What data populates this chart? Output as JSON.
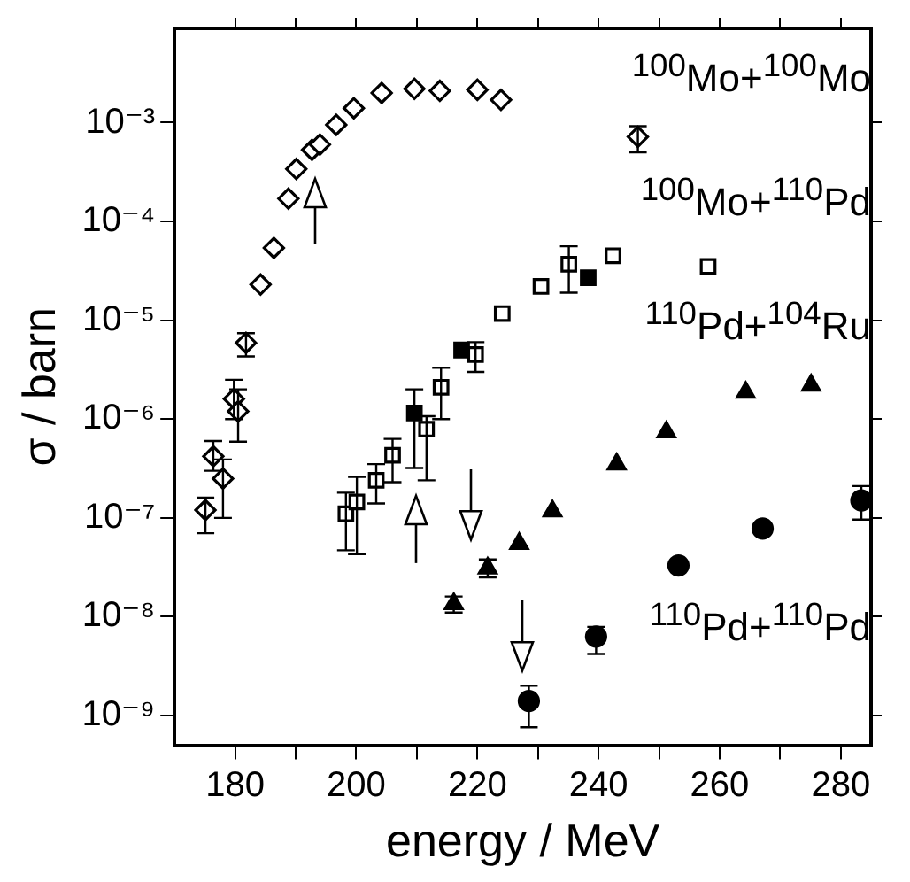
{
  "chart_data": {
    "type": "scatter",
    "xlabel": "energy / MeV",
    "ylabel": "σ / barn",
    "log": "y",
    "grid": false,
    "legend": "right",
    "xlim": [
      170,
      285
    ],
    "xticks": [
      {
        "value": 180,
        "label": "180"
      },
      {
        "value": 190,
        "label": null
      },
      {
        "value": 200,
        "label": "200"
      },
      {
        "value": 210,
        "label": null
      },
      {
        "value": 220,
        "label": "220"
      },
      {
        "value": 230,
        "label": null
      },
      {
        "value": 240,
        "label": "240"
      },
      {
        "value": 250,
        "label": null
      },
      {
        "value": 260,
        "label": "260"
      },
      {
        "value": 270,
        "label": null
      },
      {
        "value": 280,
        "label": "280"
      }
    ],
    "ylim": [
      5e-10,
      0.009
    ],
    "yticks": [
      {
        "value": 1e-09,
        "label": "10⁻⁹"
      },
      {
        "value": 1e-08,
        "label": "10⁻⁸"
      },
      {
        "value": 1e-07,
        "label": "10⁻⁷"
      },
      {
        "value": 1e-06,
        "label": "10⁻⁶"
      },
      {
        "value": 1e-05,
        "label": "10⁻⁵"
      },
      {
        "value": 0.0001,
        "label": "10⁻⁴"
      },
      {
        "value": 0.001,
        "label": "10⁻³"
      }
    ],
    "series": [
      {
        "name": "$^{100}$Mo+$^{100}$Mo",
        "color": "#000000",
        "marker": "diamond",
        "x": [
          175.1,
          176.4,
          178.0,
          179.8,
          180.5,
          181.8,
          184.2,
          186.4,
          188.8,
          190.1,
          192.7,
          194.0,
          196.7,
          199.6,
          204.2,
          209.6,
          213.8,
          220.0,
          223.9,
          246.5
        ],
        "values": [
          1.2e-07,
          4.2e-07,
          2.5e-07,
          1.6e-06,
          1.2e-06,
          5.9e-06,
          2.3e-05,
          5.4e-05,
          0.00017,
          0.00034,
          0.00053,
          0.0006,
          0.00095,
          0.0014,
          0.002,
          0.0022,
          0.0021,
          0.00215,
          0.0017,
          0.00072
        ],
        "errors": [
          [
            7e-08,
            1.6e-07
          ],
          [
            3e-07,
            6e-07
          ],
          [
            1e-07,
            3.9e-07
          ],
          [
            1e-06,
            2.5e-06
          ],
          [
            5.9e-07,
            2e-06
          ],
          [
            4.3e-06,
            7.4e-06
          ],
          null,
          null,
          null,
          null,
          null,
          null,
          null,
          null,
          null,
          null,
          null,
          null,
          null,
          [
            0.0005,
            0.00092
          ]
        ]
      },
      {
        "name": "$^{100}$Mo+$^{110}$Pd",
        "color": "#000000",
        "marker": "square",
        "x": [
          198.3,
          200.1,
          203.3,
          206.0,
          211.6,
          214.0,
          219.7,
          224.1,
          230.5,
          235.1,
          242.4,
          258.1
        ],
        "values": [
          1.1e-07,
          1.45e-07,
          2.4e-07,
          4.3e-07,
          7.9e-07,
          2.1e-06,
          4.5e-06,
          1.17e-05,
          2.2e-05,
          3.7e-05,
          4.5e-05,
          3.5e-05
        ],
        "errors": [
          [
            4.7e-08,
            1.8e-07
          ],
          [
            4.3e-08,
            2.6e-07
          ],
          [
            1.4e-07,
            3.5e-07
          ],
          [
            2.3e-07,
            6.3e-07
          ],
          [
            2.4e-07,
            1.07e-06
          ],
          [
            1e-06,
            3.3e-06
          ],
          [
            3e-06,
            6e-06
          ],
          null,
          null,
          [
            1.9e-05,
            5.6e-05
          ],
          null,
          null
        ]
      },
      {
        "color": "#000000",
        "marker": "square",
        "x": [
          209.6,
          217.4,
          238.3
        ],
        "values": [
          1.15e-06,
          5e-06,
          2.7e-05
        ],
        "errors": [
          [
            3.2e-07,
            2e-06
          ],
          null,
          null
        ]
      },
      {
        "name": "$^{110}$Pd+$^{104}$Ru",
        "color": "#000000",
        "marker": "triangle",
        "x": [
          216.1,
          221.7,
          226.9,
          232.4,
          243.0,
          251.2,
          264.3,
          275.1
        ],
        "values": [
          1.35e-08,
          3.1e-08,
          5.5e-08,
          1.17e-07,
          3.5e-07,
          7.4e-07,
          1.86e-06,
          2.2e-06
        ],
        "errors": [
          [
            1.1e-08,
            1.6e-08
          ],
          [
            2.5e-08,
            3.8e-08
          ],
          null,
          null,
          null,
          null,
          null,
          null
        ]
      },
      {
        "name": "$^{110}$Pd+$^{110}$Pd",
        "color": "#000000",
        "marker": "circle",
        "x": [
          228.5,
          239.6,
          253.2,
          267.1,
          283.4
        ],
        "values": [
          1.4e-09,
          6.3e-09,
          3.3e-08,
          7.8e-08,
          1.5e-07
        ],
        "errors": [
          [
            7.6e-10,
            2e-09
          ],
          [
            4.2e-09,
            7.9e-09
          ],
          null,
          null,
          [
            9.6e-08,
            2.1e-07
          ]
        ]
      }
    ]
  }
}
